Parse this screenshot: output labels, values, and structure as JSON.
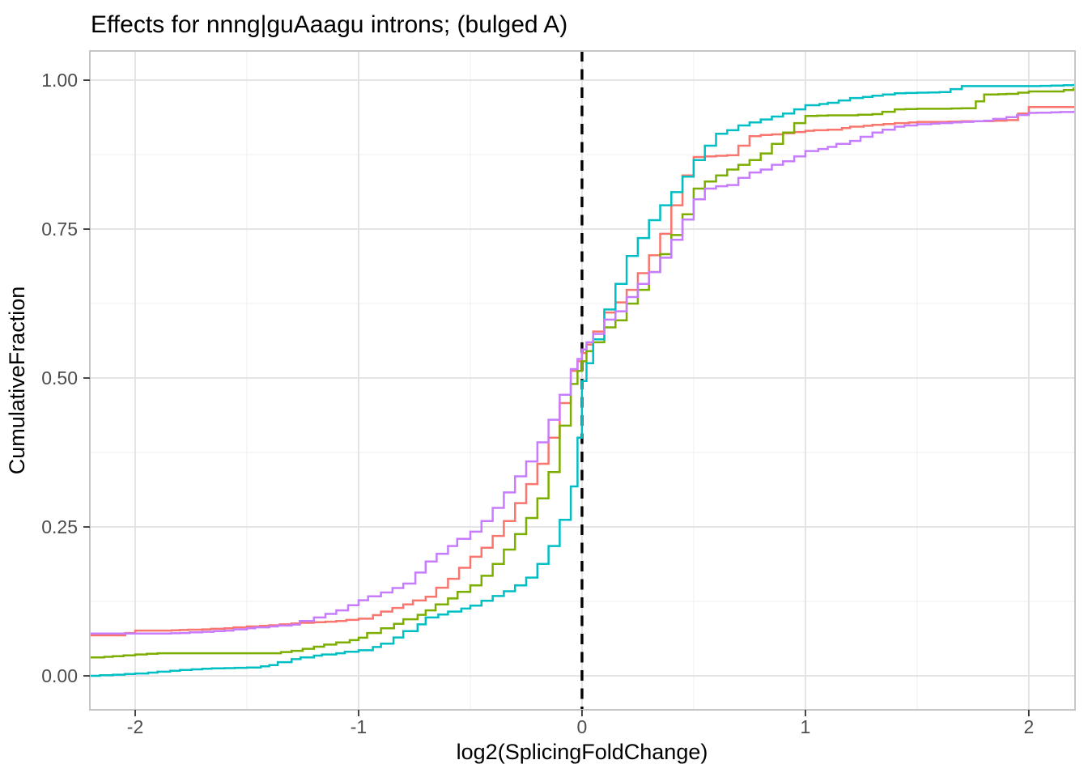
{
  "figure": {
    "title": "Effects for nnng|guAaagu introns; (bulged A)"
  },
  "style": {
    "background": "#ffffff",
    "panel_border": "#c6c6c6",
    "grid_major": "#e3e3e3",
    "grid_minor": "#f0f0f0",
    "tick_mark": "#333333",
    "tick_label_color": "#4d4d4d",
    "title_color": "#000000",
    "reference_line_color": "#000000"
  },
  "chart_data": {
    "type": "line",
    "subtype": "ecdf_step",
    "title": "Effects for nnng|guAaagu introns; (bulged A)",
    "xlabel": "log2(SplicingFoldChange)",
    "ylabel": "CumulativeFraction",
    "xlim": [
      -2.2,
      2.2
    ],
    "ylim": [
      -0.05,
      1.05
    ],
    "grid": true,
    "legend": "none",
    "x_ticks": [
      -2,
      -1,
      0,
      1,
      2
    ],
    "x_tick_labels": [
      "-2",
      "-1",
      "0",
      "1",
      "2"
    ],
    "x_minor_ticks": [
      -1.5,
      -0.5,
      0.5,
      1.5
    ],
    "y_ticks": [
      0,
      0.25,
      0.5,
      0.75,
      1
    ],
    "y_tick_labels": [
      "0.00",
      "0.25",
      "0.50",
      "0.75",
      "1.00"
    ],
    "y_minor_ticks": [
      0.125,
      0.375,
      0.625,
      0.875
    ],
    "reference_line": {
      "x": 0,
      "style": "dashed",
      "color": "#000000"
    },
    "x": [
      -2.2,
      -2.1,
      -2.0,
      -1.9,
      -1.8,
      -1.7,
      -1.6,
      -1.5,
      -1.4,
      -1.3,
      -1.2,
      -1.1,
      -1.0,
      -0.9,
      -0.8,
      -0.7,
      -0.6,
      -0.5,
      -0.45,
      -0.4,
      -0.35,
      -0.3,
      -0.25,
      -0.2,
      -0.15,
      -0.1,
      -0.05,
      -0.02,
      0,
      0.02,
      0.05,
      0.1,
      0.15,
      0.2,
      0.25,
      0.3,
      0.35,
      0.4,
      0.45,
      0.5,
      0.55,
      0.6,
      0.65,
      0.7,
      0.75,
      0.8,
      0.85,
      0.9,
      0.95,
      1.0,
      1.1,
      1.2,
      1.3,
      1.4,
      1.5,
      1.6,
      1.7,
      1.8,
      1.9,
      2.0,
      2.1,
      2.2
    ],
    "series": [
      {
        "name": "salmon-curve",
        "color": "#F8766D",
        "values": [
          0.068,
          0.068,
          0.076,
          0.076,
          0.077,
          0.078,
          0.08,
          0.083,
          0.085,
          0.088,
          0.09,
          0.092,
          0.096,
          0.108,
          0.12,
          0.133,
          0.163,
          0.2,
          0.215,
          0.235,
          0.26,
          0.29,
          0.322,
          0.356,
          0.4,
          0.458,
          0.512,
          0.528,
          0.542,
          0.556,
          0.578,
          0.61,
          0.627,
          0.648,
          0.676,
          0.706,
          0.742,
          0.79,
          0.84,
          0.871,
          0.872,
          0.873,
          0.874,
          0.89,
          0.906,
          0.908,
          0.909,
          0.911,
          0.913,
          0.915,
          0.917,
          0.922,
          0.925,
          0.928,
          0.93,
          0.93,
          0.931,
          0.931,
          0.933,
          0.955,
          0.955,
          0.955
        ]
      },
      {
        "name": "green-curve",
        "color": "#7CAE00",
        "values": [
          0.031,
          0.033,
          0.036,
          0.038,
          0.038,
          0.038,
          0.038,
          0.038,
          0.038,
          0.042,
          0.049,
          0.056,
          0.064,
          0.08,
          0.095,
          0.11,
          0.13,
          0.152,
          0.168,
          0.188,
          0.212,
          0.238,
          0.265,
          0.298,
          0.342,
          0.42,
          0.49,
          0.512,
          0.528,
          0.545,
          0.56,
          0.585,
          0.597,
          0.625,
          0.648,
          0.678,
          0.708,
          0.74,
          0.775,
          0.818,
          0.83,
          0.84,
          0.85,
          0.858,
          0.866,
          0.877,
          0.893,
          0.912,
          0.928,
          0.94,
          0.941,
          0.941,
          0.943,
          0.951,
          0.952,
          0.952,
          0.953,
          0.976,
          0.977,
          0.981,
          0.981,
          0.986
        ]
      },
      {
        "name": "teal-curve",
        "color": "#00BFC4",
        "values": [
          0.0,
          0.002,
          0.004,
          0.007,
          0.01,
          0.012,
          0.013,
          0.014,
          0.018,
          0.028,
          0.034,
          0.038,
          0.043,
          0.054,
          0.075,
          0.098,
          0.108,
          0.118,
          0.126,
          0.134,
          0.142,
          0.152,
          0.165,
          0.188,
          0.218,
          0.262,
          0.318,
          0.4,
          0.495,
          0.525,
          0.565,
          0.615,
          0.658,
          0.705,
          0.735,
          0.765,
          0.79,
          0.812,
          0.838,
          0.866,
          0.89,
          0.91,
          0.916,
          0.924,
          0.929,
          0.934,
          0.939,
          0.944,
          0.951,
          0.958,
          0.962,
          0.97,
          0.974,
          0.978,
          0.979,
          0.98,
          0.99,
          0.99,
          0.99,
          0.99,
          0.991,
          0.992
        ]
      },
      {
        "name": "purple-curve",
        "color": "#C77CFF",
        "values": [
          0.071,
          0.071,
          0.071,
          0.071,
          0.072,
          0.074,
          0.076,
          0.08,
          0.083,
          0.086,
          0.098,
          0.11,
          0.127,
          0.14,
          0.155,
          0.192,
          0.218,
          0.242,
          0.26,
          0.282,
          0.308,
          0.335,
          0.36,
          0.392,
          0.43,
          0.472,
          0.515,
          0.532,
          0.548,
          0.56,
          0.574,
          0.598,
          0.612,
          0.636,
          0.658,
          0.678,
          0.702,
          0.732,
          0.766,
          0.8,
          0.818,
          0.822,
          0.824,
          0.836,
          0.845,
          0.85,
          0.858,
          0.864,
          0.872,
          0.881,
          0.888,
          0.898,
          0.912,
          0.922,
          0.926,
          0.928,
          0.93,
          0.932,
          0.938,
          0.945,
          0.946,
          0.947
        ]
      }
    ]
  }
}
